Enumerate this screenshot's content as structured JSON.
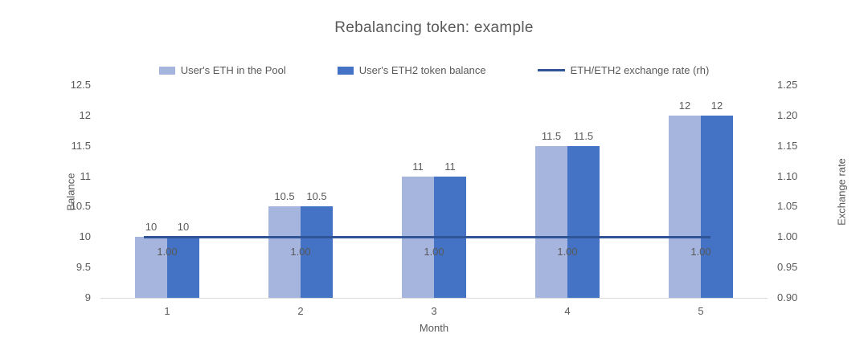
{
  "chart_data": {
    "type": "bar",
    "title": "Rebalancing token: example",
    "xlabel": "Month",
    "categories": [
      "1",
      "2",
      "3",
      "4",
      "5"
    ],
    "series": [
      {
        "name": "User's ETH in the Pool",
        "type": "bar",
        "axis": "left",
        "color": "#a6b5de",
        "values": [
          10,
          10.5,
          11,
          11.5,
          12
        ],
        "labels": [
          "10",
          "10.5",
          "11",
          "11.5",
          "12"
        ]
      },
      {
        "name": "User's ETH2 token balance",
        "type": "bar",
        "axis": "left",
        "color": "#4472c4",
        "values": [
          10,
          10.5,
          11,
          11.5,
          12
        ],
        "labels": [
          "10",
          "10.5",
          "11",
          "11.5",
          "12"
        ]
      },
      {
        "name": "ETH/ETH2 exchange rate (rh)",
        "type": "line",
        "axis": "right",
        "color": "#2f5597",
        "values": [
          1.0,
          1.0,
          1.0,
          1.0,
          1.0
        ],
        "labels": [
          "1.00",
          "1.00",
          "1.00",
          "1.00",
          "1.00"
        ]
      }
    ],
    "left_axis": {
      "title": "Balance",
      "min": 9,
      "max": 12.5,
      "ticks": [
        "9",
        "9.5",
        "10",
        "10.5",
        "11",
        "11.5",
        "12",
        "12.5"
      ]
    },
    "right_axis": {
      "title": "Exchange rate",
      "min": 0.9,
      "max": 1.25,
      "ticks": [
        "0.90",
        "0.95",
        "1.00",
        "1.05",
        "1.10",
        "1.15",
        "1.20",
        "1.25"
      ]
    },
    "legend_position": "top",
    "grid": false,
    "axis_line_color": "#d9d9d9",
    "text_color": "#595959"
  }
}
